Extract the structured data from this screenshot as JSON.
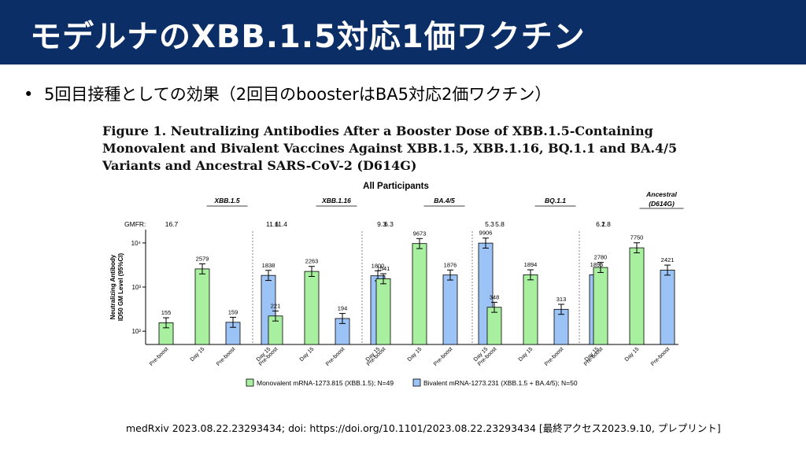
{
  "slide": {
    "title": "モデルナのXBB.1.5対応1価ワクチン",
    "bullet_marker": "•",
    "bullet": "5回目接種としての効果（2回目のboosterはBA5対応2価ワクチン）",
    "citation": "medRxiv 2023.08.22.23293434; doi: https://doi.org/10.1101/2023.08.22.23293434 [最終アクセス2023.9.10, プレプリント]"
  },
  "figure": {
    "caption": "Figure 1. Neutralizing Antibodies After a Booster Dose of XBB.1.5-Containing Monovalent and Bivalent Vaccines Against XBB.1.5, XBB.1.16, BQ.1.1 and BA.4/5 Variants and Ancestral SARS-CoV-2 (D614G)"
  },
  "chart_data": {
    "type": "bar",
    "title": "All Participants",
    "ylabel": "Neutralizing Antibody ID50 GM Level (95%CI)",
    "yscale": "log",
    "ylim": [
      50,
      20000
    ],
    "yticks": [
      {
        "value": 100,
        "label": "10²"
      },
      {
        "value": 1000,
        "label": "10³"
      },
      {
        "value": 10000,
        "label": "10⁴"
      }
    ],
    "gmfr_label": "GMFR:",
    "bar_labels": [
      "Pre-boost",
      "Day 15",
      "Pre-boost",
      "Day 15"
    ],
    "legend": [
      {
        "name": "Monovalent mRNA-1273.815 (XBB.1.5); N=49",
        "color": "#a8f0a0"
      },
      {
        "name": "Bivalent mRNA-1273.231 (XBB.1.5 + BA.4/5); N=50",
        "color": "#9cc3f5"
      }
    ],
    "groups": [
      {
        "name": "XBB.1.5",
        "gmfr": [
          "16.7",
          "11.6"
        ],
        "values": [
          155,
          2579,
          159,
          1838
        ],
        "labels": [
          "155",
          "2579",
          "159",
          "1838"
        ]
      },
      {
        "name": "XBB.1.16",
        "gmfr": [
          "11.4",
          "9.3"
        ],
        "values": [
          221,
          2263,
          194,
          1800
        ],
        "labels": [
          "221",
          "2263",
          "194",
          "1800"
        ]
      },
      {
        "name": "BA.4/5",
        "gmfr": [
          "6.3",
          "5.3"
        ],
        "values": [
          1541,
          9673,
          1876,
          9906
        ],
        "labels": [
          "1541",
          "9673",
          "1876",
          "9906"
        ]
      },
      {
        "name": "BQ.1.1",
        "gmfr": [
          "5.8",
          "6.1"
        ],
        "values": [
          348,
          1894,
          313,
          1895
        ],
        "labels": [
          "348",
          "1894",
          "313",
          "1895"
        ]
      },
      {
        "name": "Ancestral (D614G)",
        "name_line1": "Ancestral",
        "name_line2": "(D614G)",
        "gmfr": [
          "2.8",
          "2.3"
        ],
        "values": [
          2780,
          7750,
          2421,
          5861
        ],
        "labels": [
          "2780",
          "7750",
          "2421",
          "5861"
        ]
      }
    ]
  }
}
